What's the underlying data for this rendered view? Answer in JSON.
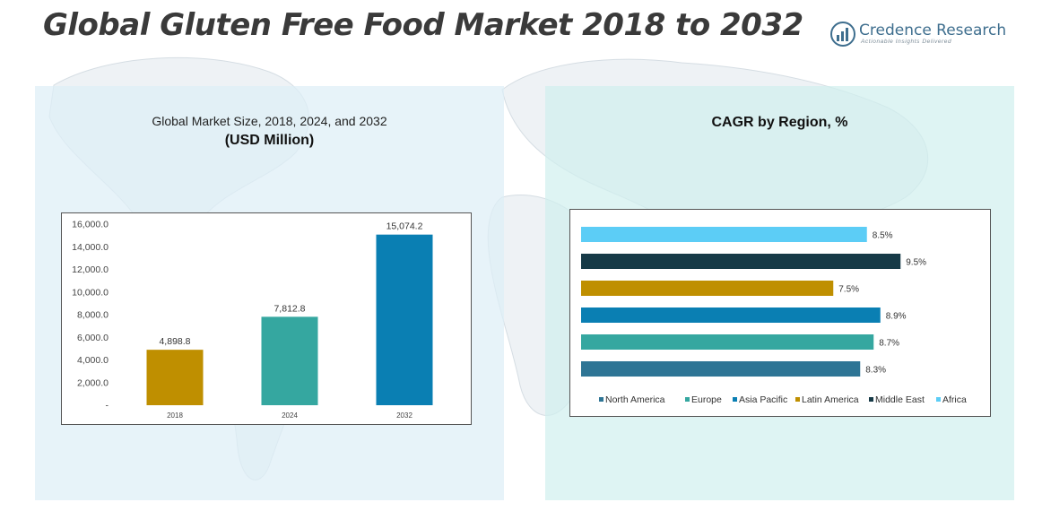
{
  "title": "Global Gluten Free Food Market 2018 to 2032",
  "brand": {
    "name": "Credence Research",
    "tagline": "Actionable Insights Delivered"
  },
  "left_panel": {
    "subtitle": "Global Market Size, 2018, 2024, and 2032",
    "unit": "(USD Million)"
  },
  "right_panel": {
    "title": "CAGR by Region, %"
  },
  "chart_data": [
    {
      "type": "bar",
      "categories": [
        "2018",
        "2024",
        "2032"
      ],
      "values": [
        4898.8,
        7812.8,
        15074.2
      ],
      "data_labels": [
        "4,898.8",
        "7,812.8",
        "15,074.2"
      ],
      "colors": [
        "#bf8f00",
        "#35a7a0",
        "#0a7fb3"
      ],
      "ylim": [
        0,
        16000
      ],
      "yticks": [
        {
          "value": 0,
          "label": "-"
        },
        {
          "value": 2000,
          "label": "2,000.0"
        },
        {
          "value": 4000,
          "label": "4,000.0"
        },
        {
          "value": 6000,
          "label": "6,000.0"
        },
        {
          "value": 8000,
          "label": "8,000.0"
        },
        {
          "value": 10000,
          "label": "10,000.0"
        },
        {
          "value": 12000,
          "label": "12,000.0"
        },
        {
          "value": 14000,
          "label": "14,000.0"
        },
        {
          "value": 16000,
          "label": "16,000.0"
        }
      ],
      "grid": false
    },
    {
      "type": "bar",
      "orientation": "horizontal",
      "categories": [
        "Africa",
        "Middle East",
        "Latin America",
        "Asia Pacific",
        "Europe",
        "North America"
      ],
      "values": [
        8.5,
        9.5,
        7.5,
        8.9,
        8.7,
        8.3
      ],
      "data_labels": [
        "8.5%",
        "9.5%",
        "7.5%",
        "8.9%",
        "8.7%",
        "8.3%"
      ],
      "colors": [
        "#5ccdf6",
        "#163a47",
        "#bf8f00",
        "#0a7fb3",
        "#35a7a0",
        "#2e7595"
      ],
      "legend": {
        "position": "bottom",
        "entries": [
          {
            "name": "North America",
            "color": "#2e7595"
          },
          {
            "name": "Europe",
            "color": "#35a7a0"
          },
          {
            "name": "Asia Pacific",
            "color": "#0a7fb3"
          },
          {
            "name": "Latin America",
            "color": "#bf8f00"
          },
          {
            "name": "Middle East",
            "color": "#163a47"
          },
          {
            "name": "Africa",
            "color": "#5ccdf6"
          }
        ]
      },
      "grid": false
    }
  ]
}
